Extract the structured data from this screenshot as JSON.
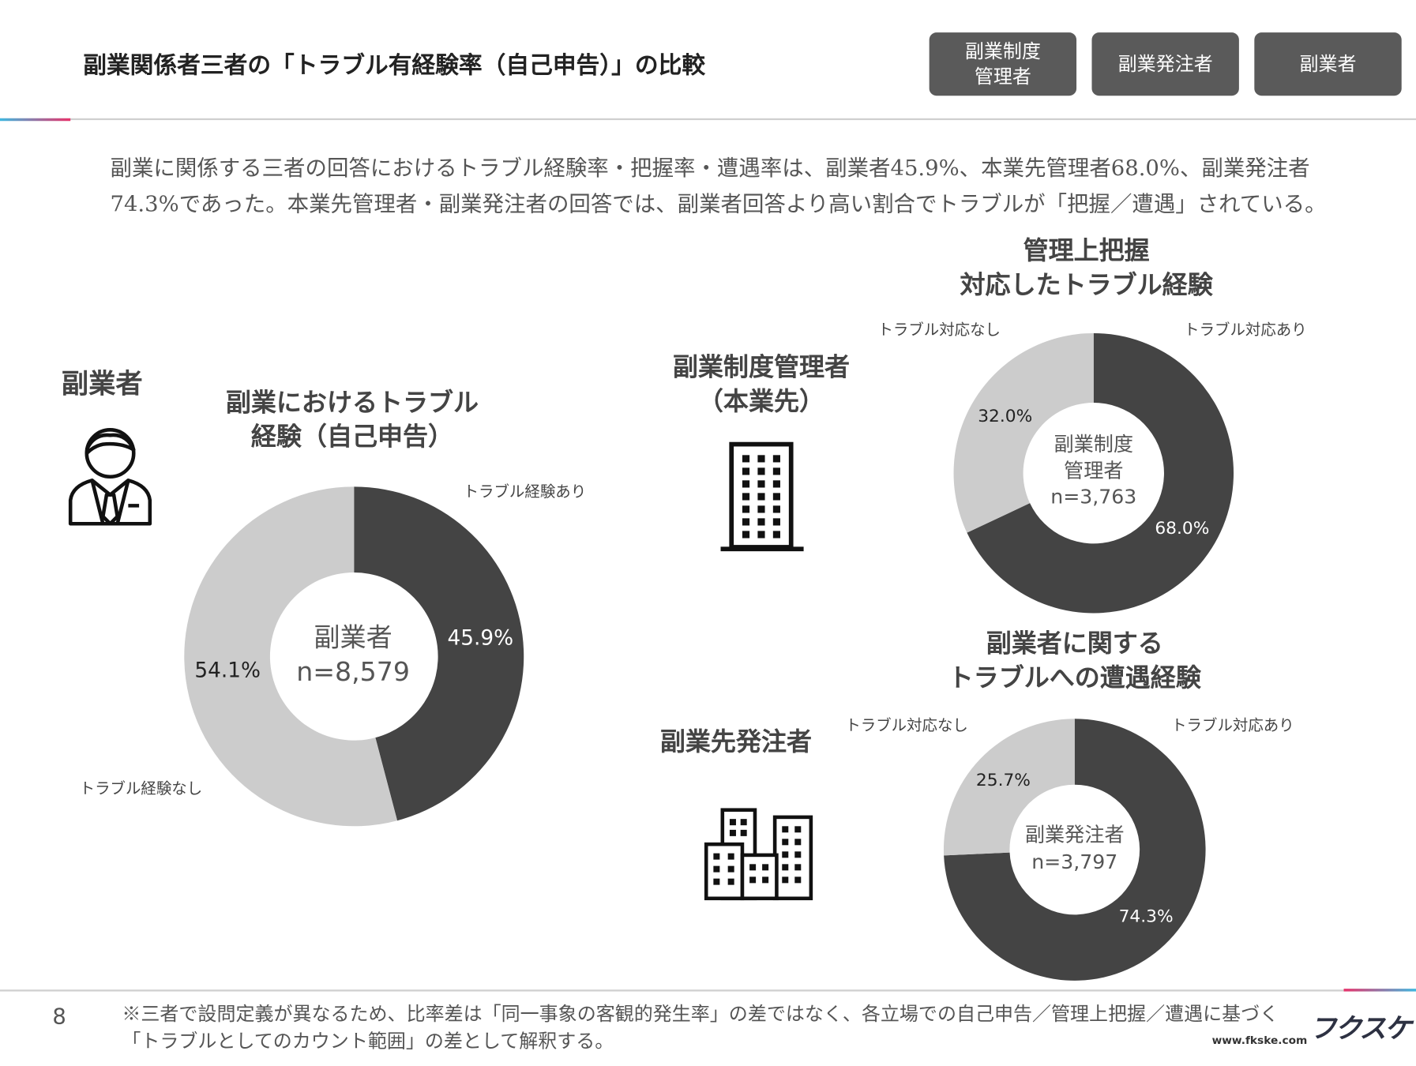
{
  "header": {
    "title": "副業関係者三者の「トラブル有経験率（自己申告）」の比較",
    "tabs": [
      {
        "label": "副業制度\n管理者"
      },
      {
        "label": "副業発注者"
      },
      {
        "label": "副業者"
      }
    ]
  },
  "summary": "副業に関係する三者の回答におけるトラブル経験率・把握率・遭遇率は、副業者45.9%、本業先管理者68.0%、副業発注者74.3%であった。本業先管理者・副業発注者の回答では、副業者回答より高い割合でトラブルが「把握／遭遇」されている。",
  "colors": {
    "dark": "#444444",
    "light": "#cccccc",
    "button": "#5a5a5a",
    "accent_blue": "#3fb8e0",
    "accent_pink": "#e8336b"
  },
  "sections": {
    "worker": {
      "label": "副業者",
      "icon": "businessman-icon"
    },
    "manager": {
      "label": "副業制度管理者\n（本業先）",
      "icon": "office-building-icon"
    },
    "client": {
      "label": "副業先発注者",
      "icon": "city-buildings-icon"
    }
  },
  "chart_data": [
    {
      "type": "pie",
      "title": "副業におけるトラブル\n経験（自己申告）",
      "center_label": "副業者",
      "n": "n=8,579",
      "slices": [
        {
          "name": "トラブル経験あり",
          "value": 45.9,
          "label": "45.9%",
          "color": "#444444"
        },
        {
          "name": "トラブル経験なし",
          "value": 54.1,
          "label": "54.1%",
          "color": "#cccccc"
        }
      ]
    },
    {
      "type": "pie",
      "title": "管理上把握\n対応したトラブル経験",
      "center_label": "副業制度\n管理者",
      "n": "n=3,763",
      "slices": [
        {
          "name": "トラブル対応あり",
          "value": 68.0,
          "label": "68.0%",
          "color": "#444444"
        },
        {
          "name": "トラブル対応なし",
          "value": 32.0,
          "label": "32.0%",
          "color": "#cccccc"
        }
      ]
    },
    {
      "type": "pie",
      "title": "副業者に関する\nトラブルへの遭遇経験",
      "center_label": "副業発注者",
      "n": "n=3,797",
      "slices": [
        {
          "name": "トラブル対応あり",
          "value": 74.3,
          "label": "74.3%",
          "color": "#444444"
        },
        {
          "name": "トラブル対応なし",
          "value": 25.7,
          "label": "25.7%",
          "color": "#cccccc"
        }
      ]
    }
  ],
  "footer": {
    "page": "8",
    "note": "※三者で設問定義が異なるため、比率差は「同一事象の客観的発生率」の差ではなく、各立場での自己申告／管理上把握／遭遇に基づく「トラブルとしてのカウント範囲」の差として解釈する。",
    "logo": "フクスケ",
    "url": "www.fkske.com"
  }
}
